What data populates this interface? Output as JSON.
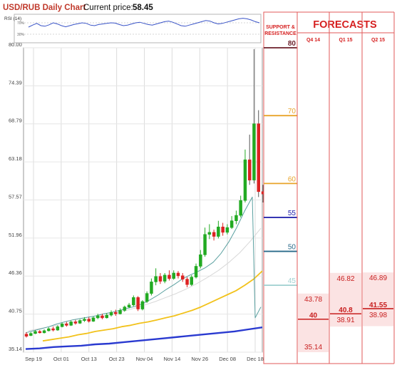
{
  "header": {
    "title": "USD/RUB Daily Chart",
    "price_label": "Current price:",
    "price_value": "58.45"
  },
  "rsi": {
    "label": "RSI (14)",
    "levels": [
      "70%",
      "30%"
    ],
    "values": [
      55,
      62,
      68,
      60,
      58,
      63,
      70,
      66,
      60,
      56,
      60,
      64,
      67,
      70,
      68,
      62,
      60,
      64,
      66,
      68,
      70,
      69,
      64,
      60,
      62,
      66,
      70,
      72,
      68,
      64,
      62,
      66,
      70,
      74,
      76,
      72,
      66,
      60,
      58,
      62,
      66,
      70,
      74,
      78,
      76,
      70,
      66,
      68,
      72,
      76,
      80,
      84,
      86,
      84,
      80,
      74,
      70
    ],
    "color": "#3a54c8"
  },
  "chart_data": {
    "type": "candlestick",
    "x_ticks": [
      "Sep 19",
      "Oct 01",
      "Oct 13",
      "Oct 23",
      "Nov 04",
      "Nov 14",
      "Nov 26",
      "Dec 08",
      "Dec 18"
    ],
    "y_ticks": [
      35.14,
      40.75,
      46.36,
      51.96,
      57.57,
      63.18,
      68.79,
      74.39,
      80.0
    ],
    "y_tick_labels": [
      "35.14",
      "40.75",
      "46.36",
      "51.96",
      "57.57",
      "63.18",
      "68.79",
      "74.39",
      "80.00"
    ],
    "ylim": [
      35.14,
      80.0
    ],
    "colors": {
      "up": "#22aa22",
      "down": "#dd2222",
      "ma_short": "#5aa0a0",
      "ma_mid": "#f2c21b",
      "ma_long": "#2a3ad0",
      "ma_faint": "#d8d8d8"
    },
    "candles": [
      [
        37.8,
        37.5,
        38.1,
        37.3
      ],
      [
        37.6,
        37.9,
        38.1,
        37.5
      ],
      [
        37.9,
        38.2,
        38.4,
        37.8
      ],
      [
        38.2,
        38.0,
        38.4,
        37.9
      ],
      [
        38.0,
        38.3,
        38.5,
        37.9
      ],
      [
        38.3,
        38.6,
        38.8,
        38.2
      ],
      [
        38.6,
        38.4,
        38.9,
        38.2
      ],
      [
        38.4,
        38.9,
        39.1,
        38.3
      ],
      [
        38.9,
        39.3,
        39.5,
        38.8
      ],
      [
        39.3,
        39.1,
        39.6,
        38.9
      ],
      [
        39.1,
        39.6,
        39.8,
        39.0
      ],
      [
        39.6,
        39.4,
        39.9,
        39.2
      ],
      [
        39.4,
        39.8,
        40.0,
        39.3
      ],
      [
        39.8,
        40.0,
        40.3,
        39.6
      ],
      [
        40.0,
        39.7,
        40.3,
        39.5
      ],
      [
        39.7,
        40.2,
        40.4,
        39.6
      ],
      [
        40.2,
        40.5,
        40.8,
        40.0
      ],
      [
        40.5,
        40.2,
        40.8,
        40.0
      ],
      [
        40.2,
        40.6,
        40.9,
        40.1
      ],
      [
        40.6,
        41.0,
        41.3,
        40.4
      ],
      [
        41.0,
        40.8,
        41.4,
        40.5
      ],
      [
        40.8,
        41.3,
        41.6,
        40.7
      ],
      [
        41.3,
        41.8,
        42.0,
        41.1
      ],
      [
        41.8,
        42.1,
        42.4,
        41.6
      ],
      [
        42.1,
        43.2,
        43.5,
        41.9
      ],
      [
        43.2,
        41.5,
        43.4,
        41.2
      ],
      [
        41.5,
        42.6,
        42.8,
        41.3
      ],
      [
        42.6,
        43.8,
        44.1,
        42.4
      ],
      [
        43.8,
        45.5,
        46.0,
        43.5
      ],
      [
        45.5,
        46.3,
        47.5,
        45.0
      ],
      [
        46.3,
        45.6,
        46.8,
        45.2
      ],
      [
        45.6,
        46.5,
        46.8,
        45.3
      ],
      [
        46.5,
        46.0,
        47.2,
        45.7
      ],
      [
        46.0,
        46.8,
        47.2,
        45.8
      ],
      [
        46.8,
        46.4,
        47.1,
        46.0
      ],
      [
        46.4,
        45.9,
        46.8,
        45.5
      ],
      [
        45.9,
        45.1,
        46.2,
        44.7
      ],
      [
        45.1,
        46.2,
        46.5,
        44.9
      ],
      [
        46.2,
        47.8,
        48.2,
        46.0
      ],
      [
        47.8,
        49.5,
        50.2,
        47.5
      ],
      [
        49.5,
        52.5,
        53.5,
        49.2
      ],
      [
        52.5,
        52.8,
        54.0,
        51.8
      ],
      [
        52.8,
        52.2,
        53.2,
        51.6
      ],
      [
        52.2,
        53.6,
        54.5,
        51.9
      ],
      [
        53.6,
        52.8,
        54.2,
        52.3
      ],
      [
        52.8,
        53.5,
        54.0,
        52.5
      ],
      [
        53.5,
        54.5,
        55.2,
        53.3
      ],
      [
        54.5,
        55.3,
        56.0,
        54.0
      ],
      [
        55.3,
        57.5,
        58.2,
        55.0
      ],
      [
        57.5,
        63.5,
        65.0,
        57.2
      ],
      [
        63.5,
        60.5,
        67.2,
        59.8
      ],
      [
        60.5,
        68.8,
        79.8,
        60.0
      ],
      [
        68.8,
        58.8,
        70.8,
        58.0
      ],
      [
        58.8,
        58.45,
        59.8,
        57.2
      ]
    ],
    "ma_short": [
      38.0,
      38.3,
      38.6,
      38.9,
      39.3,
      39.6,
      39.9,
      40.1,
      40.3,
      40.5,
      40.8,
      41.0,
      41.3,
      41.6,
      41.9,
      42.3,
      42.9,
      43.6,
      44.4,
      45.1,
      45.9,
      46.5,
      47.0,
      47.6,
      48.4,
      49.7,
      51.4,
      53.5,
      55.9,
      58.0
    ],
    "ma_mid": [
      36.8,
      37.0,
      37.2,
      37.4,
      37.7,
      37.9,
      38.2,
      38.4,
      38.6,
      38.9,
      39.1,
      39.4,
      39.6,
      39.9,
      40.2,
      40.5,
      40.9,
      41.3,
      41.8,
      42.4,
      43.0,
      43.6,
      44.2,
      45.0,
      45.9,
      47.1
    ],
    "ma_long": [
      35.6,
      35.7,
      35.9,
      36.0,
      36.1,
      36.3,
      36.4,
      36.6,
      36.8,
      37.0,
      37.2,
      37.4,
      37.6,
      37.8,
      38.0,
      38.2,
      38.5,
      38.8
    ],
    "ma_faint": [
      38.3,
      38.6,
      38.9,
      39.2,
      39.5,
      39.8,
      40.1,
      40.4,
      40.8,
      41.2,
      41.6,
      42.1,
      42.6,
      43.2,
      43.8,
      44.5,
      45.3,
      46.2,
      47.2,
      48.4,
      49.8,
      51.5,
      53.4
    ]
  },
  "support_resistance": {
    "title": "SUPPORT & RESISTANCE",
    "levels": [
      {
        "label": "80",
        "value": 80,
        "color": "#6b1f2a"
      },
      {
        "label": "70",
        "value": 70,
        "color": "#e8a42a"
      },
      {
        "label": "60",
        "value": 60,
        "color": "#e8a42a"
      },
      {
        "label": "55",
        "value": 55,
        "color": "#1a1aa8"
      },
      {
        "label": "50",
        "value": 50,
        "color": "#2a6a8a"
      },
      {
        "label": "45",
        "value": 45,
        "color": "#9fd0d0"
      }
    ]
  },
  "forecasts": {
    "title": "FORECASTS",
    "columns": [
      {
        "label": "Q4 14",
        "high": "43.78",
        "mid": "40",
        "low": "35.14",
        "high_v": 43.78,
        "mid_v": 40,
        "low_v": 35.14
      },
      {
        "label": "Q1 15",
        "high": "46.82",
        "mid": "40.8",
        "low": "38.91",
        "high_v": 46.82,
        "mid_v": 40.8,
        "low_v": 38.91
      },
      {
        "label": "Q2 15",
        "high": "46.89",
        "mid": "41.55",
        "low": "38.98",
        "high_v": 46.89,
        "mid_v": 41.55,
        "low_v": 38.98
      }
    ]
  }
}
